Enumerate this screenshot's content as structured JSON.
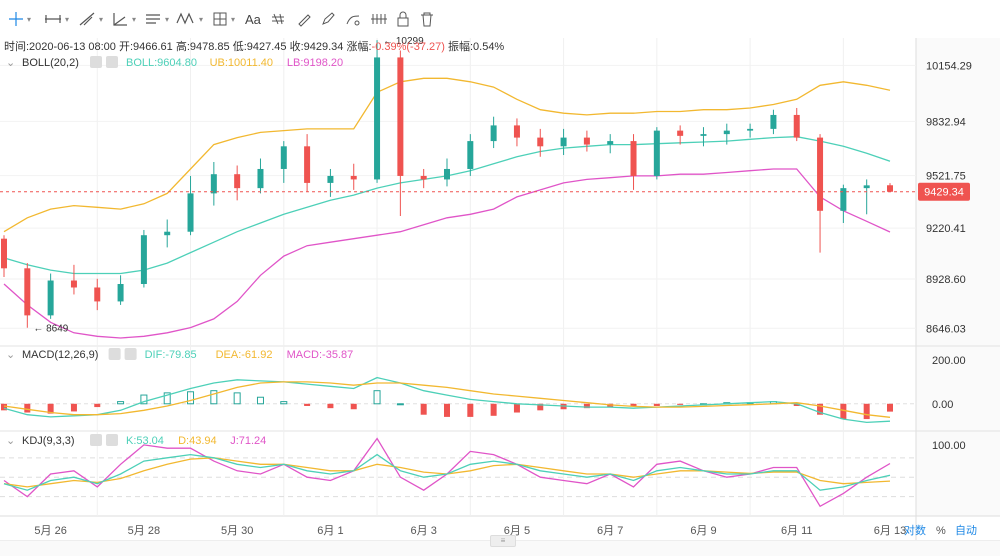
{
  "toolbar": {
    "icons": [
      "crosshair-icon",
      "horizontal-line-icon",
      "trend-line-icon",
      "angle-icon",
      "channel-icon",
      "wave-icon",
      "grid-icon",
      "text-icon",
      "pattern-icon",
      "brush-icon",
      "pencil-icon",
      "measure-icon",
      "lock-icon",
      "trash-icon"
    ],
    "text_label": "Aa"
  },
  "ohlc": {
    "time_label": "时间:",
    "time": "2020-06-13 08:00",
    "open_label": "开:",
    "open": "9466.61",
    "high_label": "高:",
    "high": "9478.85",
    "low_label": "低:",
    "low": "9427.45",
    "close_label": "收:",
    "close": "9429.34",
    "change_label": "涨幅:",
    "change": "-0.39%(-37.27)",
    "amp_label": "振幅:",
    "amp": "0.54%"
  },
  "boll_legend": {
    "name": "BOLL(20,2)",
    "mid": "BOLL:9604.80",
    "ub": "UB:10011.40",
    "lb": "LB:9198.20"
  },
  "macd_legend": {
    "name": "MACD(12,26,9)",
    "dif": "DIF:-79.85",
    "dea": "DEA:-61.92",
    "macd": "MACD:-35.87"
  },
  "kdj_legend": {
    "name": "KDJ(9,3,3)",
    "k": "K:53.04",
    "d": "D:43.94",
    "j": "J:71.24"
  },
  "price_axis": [
    "10154.29",
    "9832.94",
    "9521.75",
    "9220.41",
    "8928.60",
    "8646.03"
  ],
  "current_price": "9429.34",
  "macd_axis": [
    "200.00",
    "0.00"
  ],
  "kdj_axis": [
    "100.00"
  ],
  "annotations": {
    "high_mark": "10299",
    "low_mark": "8649"
  },
  "xaxis": [
    "5月 26",
    "5月 28",
    "5月 30",
    "6月 1",
    "6月 3",
    "6月 5",
    "6月 7",
    "6月 9",
    "6月 11",
    "6月 13"
  ],
  "bottom_controls": {
    "log": "对数",
    "pct": "%",
    "auto": "自动"
  },
  "colors": {
    "up": "#26a69a",
    "down": "#ef5350",
    "boll_mid": "#4dd0b8",
    "boll_ub": "#f2b830",
    "boll_lb": "#e055c8",
    "accent": "#1e88e5",
    "dif": "#4dd0b8",
    "dea": "#f2b830",
    "j": "#e055c8"
  },
  "chart_data": {
    "type": "candlestick",
    "x": [
      "5月 25 08:00",
      "5月 25 20:00",
      "5月 26 08:00",
      "5月 26 20:00",
      "5月 27 08:00",
      "5月 27 20:00",
      "5月 28 08:00",
      "5月 28 20:00",
      "5月 29 08:00",
      "5月 29 20:00",
      "5月 30 08:00",
      "5月 30 20:00",
      "5月 31 08:00",
      "5月 31 20:00",
      "6月 1 08:00",
      "6月 1 20:00",
      "6月 2 08:00",
      "6月 2 20:00",
      "6月 3 08:00",
      "6月 3 20:00",
      "6月 4 08:00",
      "6月 4 20:00",
      "6月 5 08:00",
      "6月 5 20:00",
      "6月 6 08:00",
      "6月 6 20:00",
      "6月 7 08:00",
      "6月 7 20:00",
      "6月 8 08:00",
      "6月 8 20:00",
      "6月 9 08:00",
      "6月 9 20:00",
      "6月 10 08:00",
      "6月 10 20:00",
      "6月 11 08:00",
      "6月 11 20:00",
      "6月 12 08:00",
      "6月 12 20:00",
      "6月 13 08:00"
    ],
    "ohlc": [
      [
        9160,
        9180,
        8940,
        8990
      ],
      [
        8990,
        9020,
        8649,
        8720
      ],
      [
        8720,
        8960,
        8700,
        8920
      ],
      [
        8920,
        9010,
        8840,
        8880
      ],
      [
        8880,
        8930,
        8750,
        8800
      ],
      [
        8800,
        8950,
        8780,
        8900
      ],
      [
        8900,
        9210,
        8880,
        9180
      ],
      [
        9180,
        9270,
        9110,
        9200
      ],
      [
        9200,
        9520,
        9180,
        9420
      ],
      [
        9420,
        9600,
        9350,
        9530
      ],
      [
        9530,
        9580,
        9380,
        9450
      ],
      [
        9450,
        9620,
        9420,
        9560
      ],
      [
        9560,
        9720,
        9480,
        9690
      ],
      [
        9690,
        9760,
        9430,
        9480
      ],
      [
        9480,
        9560,
        9400,
        9520
      ],
      [
        9520,
        9590,
        9440,
        9500
      ],
      [
        9500,
        10299,
        9480,
        10200
      ],
      [
        10200,
        10240,
        9290,
        9520
      ],
      [
        9520,
        9560,
        9450,
        9500
      ],
      [
        9500,
        9620,
        9460,
        9560
      ],
      [
        9560,
        9760,
        9520,
        9720
      ],
      [
        9720,
        9860,
        9680,
        9810
      ],
      [
        9810,
        9850,
        9690,
        9740
      ],
      [
        9740,
        9790,
        9630,
        9690
      ],
      [
        9690,
        9790,
        9640,
        9740
      ],
      [
        9740,
        9780,
        9660,
        9700
      ],
      [
        9700,
        9760,
        9650,
        9720
      ],
      [
        9720,
        9760,
        9440,
        9520
      ],
      [
        9520,
        9800,
        9500,
        9780
      ],
      [
        9780,
        9810,
        9700,
        9750
      ],
      [
        9750,
        9800,
        9690,
        9760
      ],
      [
        9760,
        9820,
        9700,
        9780
      ],
      [
        9780,
        9820,
        9740,
        9790
      ],
      [
        9790,
        9900,
        9760,
        9870
      ],
      [
        9870,
        9910,
        9720,
        9740
      ],
      [
        9740,
        9760,
        9080,
        9320
      ],
      [
        9320,
        9470,
        9250,
        9450
      ],
      [
        9450,
        9500,
        9300,
        9466
      ],
      [
        9466.61,
        9478.85,
        9427.45,
        9429.34
      ]
    ],
    "boll_mid": [
      9050,
      9010,
      8980,
      8960,
      8960,
      8960,
      8980,
      9020,
      9080,
      9140,
      9200,
      9250,
      9300,
      9340,
      9380,
      9410,
      9450,
      9480,
      9500,
      9520,
      9550,
      9590,
      9630,
      9660,
      9680,
      9690,
      9700,
      9700,
      9705,
      9710,
      9715,
      9720,
      9730,
      9740,
      9745,
      9720,
      9690,
      9650,
      9604.8
    ],
    "boll_ub": [
      9200,
      9280,
      9330,
      9350,
      9340,
      9330,
      9360,
      9420,
      9560,
      9700,
      9740,
      9770,
      9780,
      9790,
      9790,
      9790,
      10000,
      10060,
      10080,
      10080,
      10060,
      10030,
      9960,
      9900,
      9880,
      9870,
      9880,
      9880,
      9890,
      9890,
      9900,
      9900,
      9910,
      9930,
      9960,
      10040,
      10060,
      10040,
      10011.4
    ],
    "boll_lb": [
      8900,
      8780,
      8680,
      8620,
      8600,
      8590,
      8600,
      8620,
      8650,
      8700,
      8800,
      8950,
      9060,
      9120,
      9140,
      9160,
      9180,
      9200,
      9240,
      9280,
      9300,
      9330,
      9400,
      9440,
      9480,
      9500,
      9510,
      9520,
      9520,
      9530,
      9530,
      9540,
      9550,
      9560,
      9560,
      9400,
      9320,
      9260,
      9198.2
    ],
    "price_range": [
      8550,
      10300
    ],
    "macd": {
      "dif": [
        -20,
        -50,
        -60,
        -55,
        -50,
        -30,
        10,
        40,
        70,
        95,
        110,
        105,
        100,
        90,
        80,
        70,
        120,
        95,
        60,
        40,
        20,
        10,
        0,
        -5,
        -10,
        -15,
        -15,
        -20,
        -15,
        -10,
        -5,
        0,
        5,
        10,
        0,
        -40,
        -70,
        -85,
        -79.85
      ],
      "dea": [
        -10,
        -25,
        -40,
        -50,
        -50,
        -45,
        -30,
        -10,
        15,
        45,
        75,
        95,
        100,
        100,
        95,
        85,
        95,
        95,
        85,
        75,
        60,
        45,
        35,
        25,
        15,
        5,
        -5,
        -12,
        -15,
        -15,
        -12,
        -8,
        -4,
        0,
        5,
        -10,
        -30,
        -50,
        -61.92
      ],
      "hist": [
        -30,
        -40,
        -45,
        -35,
        -15,
        10,
        40,
        50,
        55,
        60,
        50,
        30,
        10,
        -10,
        -20,
        -25,
        60,
        0,
        -50,
        -60,
        -60,
        -55,
        -40,
        -30,
        -25,
        -20,
        -15,
        -10,
        -10,
        -5,
        0,
        5,
        5,
        10,
        -10,
        -50,
        -70,
        -70,
        -35.87
      ],
      "range": [
        -120,
        260
      ]
    },
    "kdj": {
      "k": [
        40,
        30,
        45,
        50,
        40,
        55,
        75,
        80,
        85,
        80,
        70,
        65,
        70,
        60,
        55,
        60,
        85,
        60,
        50,
        55,
        70,
        75,
        70,
        60,
        55,
        50,
        55,
        45,
        60,
        65,
        60,
        55,
        55,
        60,
        60,
        30,
        35,
        45,
        53.04
      ],
      "d": [
        40,
        35,
        40,
        45,
        42,
        48,
        60,
        70,
        78,
        80,
        75,
        70,
        70,
        65,
        60,
        60,
        70,
        65,
        58,
        55,
        60,
        68,
        70,
        65,
        60,
        55,
        55,
        50,
        55,
        60,
        60,
        58,
        56,
        58,
        58,
        45,
        40,
        42,
        43.94
      ],
      "j": [
        45,
        20,
        55,
        60,
        35,
        70,
        100,
        95,
        95,
        75,
        60,
        55,
        70,
        50,
        45,
        60,
        110,
        50,
        30,
        55,
        90,
        85,
        70,
        50,
        45,
        40,
        55,
        35,
        70,
        75,
        60,
        50,
        55,
        65,
        65,
        5,
        25,
        50,
        71.24
      ],
      "range": [
        -10,
        120
      ]
    }
  }
}
